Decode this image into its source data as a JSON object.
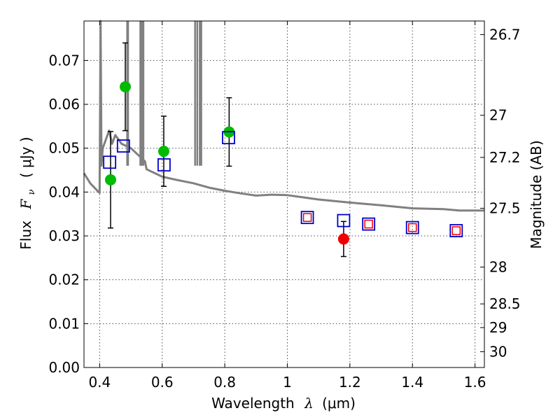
{
  "chart_data": {
    "type": "scatter",
    "xlabel_text": "Wavelength",
    "xlabel_var": "λ",
    "xlabel_unit": "(μm)",
    "ylabel_text": "Flux",
    "ylabel_var": "F",
    "ylabel_sub": "ν",
    "ylabel_unit": "( μJy )",
    "y2label": "Magnitude (AB)",
    "xlim": [
      0.35,
      1.63
    ],
    "ylim": [
      0.0,
      0.079
    ],
    "grid": true,
    "x_ticks": [
      0.4,
      0.6,
      0.8,
      1.0,
      1.2,
      1.4,
      1.6
    ],
    "x_tick_labels": [
      "0.4",
      "0.6",
      "0.8",
      "1",
      "1.2",
      "1.4",
      "1.6"
    ],
    "y_ticks": [
      0.0,
      0.01,
      0.02,
      0.03,
      0.04,
      0.05,
      0.06,
      0.07
    ],
    "y_tick_labels": [
      "0.00",
      "0.01",
      "0.02",
      "0.03",
      "0.04",
      "0.05",
      "0.06",
      "0.07"
    ],
    "mag_ticks": [
      {
        "label": "26.7",
        "flux": 0.0759
      },
      {
        "label": "27",
        "flux": 0.0575
      },
      {
        "label": "27.2",
        "flux": 0.0479
      },
      {
        "label": "27.5",
        "flux": 0.0363
      },
      {
        "label": "28",
        "flux": 0.0229
      },
      {
        "label": "28.5",
        "flux": 0.0145
      },
      {
        "label": "29",
        "flux": 0.0091
      },
      {
        "label": "30",
        "flux": 0.0036
      }
    ],
    "series": [
      {
        "kind": "green-points",
        "color": "#00bb00",
        "x": [
          0.435,
          0.482,
          0.605,
          0.814
        ],
        "y": [
          0.0428,
          0.064,
          0.0493,
          0.0537
        ],
        "err": [
          0.011,
          0.01,
          0.008,
          0.0078
        ]
      },
      {
        "kind": "red-points",
        "color": "#ee0000",
        "x": [
          1.18
        ],
        "y": [
          0.0293
        ],
        "err": [
          0.004
        ]
      },
      {
        "kind": "model-squares-blue",
        "color": "#0000cc",
        "x": [
          0.432,
          0.476,
          0.606,
          0.812,
          1.064,
          1.18,
          1.26,
          1.4,
          1.54
        ],
        "y": [
          0.0468,
          0.0505,
          0.0462,
          0.0524,
          0.0342,
          0.0335,
          0.0327,
          0.0319,
          0.0312
        ]
      },
      {
        "kind": "model-squares-red",
        "color": "#ee0000",
        "x": [
          1.064,
          1.26,
          1.4,
          1.54
        ],
        "y": [
          0.0342,
          0.0327,
          0.0319,
          0.0312
        ]
      },
      {
        "kind": "sed-line",
        "color": "#808080",
        "x": [
          0.35,
          0.37,
          0.39,
          0.4,
          0.403,
          0.406,
          0.41,
          0.42,
          0.43,
          0.44,
          0.45,
          0.47,
          0.5,
          0.53,
          0.545,
          0.55,
          0.6,
          0.65,
          0.7,
          0.75,
          0.8,
          0.85,
          0.9,
          0.95,
          1.0,
          1.05,
          1.1,
          1.2,
          1.3,
          1.4,
          1.5,
          1.55,
          1.63
        ],
        "y": [
          0.0443,
          0.042,
          0.0405,
          0.0398,
          0.079,
          0.046,
          0.05,
          0.052,
          0.054,
          0.051,
          0.053,
          0.051,
          0.05,
          0.048,
          0.047,
          0.0452,
          0.0435,
          0.0427,
          0.042,
          0.041,
          0.0403,
          0.0397,
          0.0392,
          0.0394,
          0.0393,
          0.0388,
          0.0383,
          0.0376,
          0.037,
          0.0363,
          0.0361,
          0.0358,
          0.0358
        ]
      },
      {
        "kind": "emission-lines",
        "color": "#808080",
        "x": [
          0.488,
          0.491,
          0.53,
          0.535,
          0.54,
          0.705,
          0.712,
          0.72,
          0.725
        ],
        "y": [
          0.079,
          0.079,
          0.079,
          0.079,
          0.079,
          0.079,
          0.079,
          0.079,
          0.079
        ]
      }
    ]
  }
}
